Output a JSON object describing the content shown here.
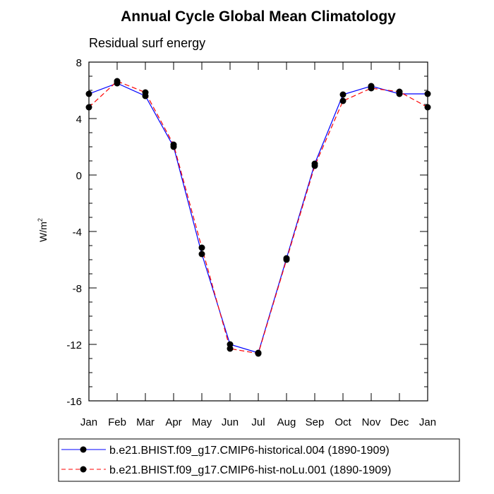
{
  "chart_data": {
    "type": "line",
    "title": "Annual Cycle Global Mean Climatology",
    "subtitle": "Residual surf energy",
    "ylabel": "W/m",
    "ylabel_superscript": "2",
    "xlabel": "",
    "categories": [
      "Jan",
      "Feb",
      "Mar",
      "Apr",
      "May",
      "Jun",
      "Jul",
      "Aug",
      "Sep",
      "Oct",
      "Nov",
      "Dec",
      "Jan"
    ],
    "ylim": [
      -16,
      8
    ],
    "yticks": [
      8,
      4,
      0,
      -4,
      -8,
      -12,
      -16
    ],
    "series": [
      {
        "name": "b.e21.BHIST.f09_g17.CMIP6-historical.004 (1890-1909)",
        "color": "#0000ff",
        "dash": "solid",
        "values": [
          5.75,
          6.5,
          5.6,
          2.0,
          -5.6,
          -12.0,
          -12.6,
          -5.9,
          0.8,
          5.7,
          6.3,
          5.75,
          5.75
        ]
      },
      {
        "name": "b.e21.BHIST.f09_g17.CMIP6-hist-noLu.001 (1890-1909)",
        "color": "#ff0000",
        "dash": "dashed",
        "values": [
          4.8,
          6.65,
          5.85,
          2.15,
          -5.15,
          -12.3,
          -12.65,
          -6.0,
          0.65,
          5.25,
          6.15,
          5.9,
          4.8
        ]
      }
    ]
  }
}
